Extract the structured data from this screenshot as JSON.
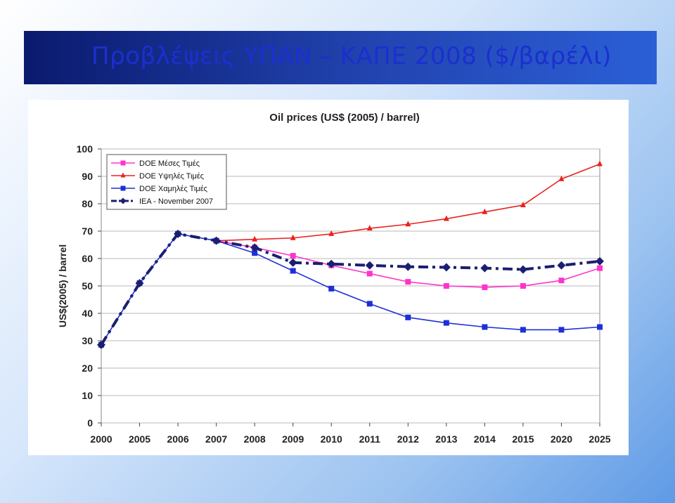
{
  "slide": {
    "title": "Προβλέψεις ΥΠΑΝ – ΚΑΠΕ 2008 ($/βαρέλι)"
  },
  "chart_data": {
    "type": "line",
    "title": "Oil prices (US$ (2005) / barrel)",
    "xlabel": "",
    "ylabel": "US$(2005) / barrel",
    "categories": [
      "2000",
      "2005",
      "2006",
      "2007",
      "2008",
      "2009",
      "2010",
      "2011",
      "2012",
      "2013",
      "2014",
      "2015",
      "2020",
      "2025"
    ],
    "ylim": [
      0,
      100
    ],
    "yticks": [
      0,
      10,
      20,
      30,
      40,
      50,
      60,
      70,
      80,
      90,
      100
    ],
    "grid": true,
    "legend_position": "top-left",
    "series": [
      {
        "name": "DOE Μέσες Τιμές",
        "color": "#ff33cc",
        "marker": "square",
        "dash": "solid",
        "values": [
          null,
          null,
          null,
          66.5,
          64,
          61,
          57.5,
          54.5,
          51.5,
          50,
          49.5,
          50,
          52,
          56.5
        ]
      },
      {
        "name": "DOE Υψηλές Τιμές",
        "color": "#e8231f",
        "marker": "triangle",
        "dash": "solid",
        "values": [
          null,
          null,
          null,
          66.5,
          67,
          67.5,
          69,
          71,
          72.5,
          74.5,
          77,
          79.5,
          89,
          94.5
        ]
      },
      {
        "name": "DOE Χαμηλές Τιμές",
        "color": "#1f2fd6",
        "marker": "square",
        "dash": "solid",
        "values": [
          28.5,
          51,
          69,
          66.5,
          62,
          55.5,
          49,
          43.5,
          38.5,
          36.5,
          35,
          34,
          34,
          35
        ]
      },
      {
        "name": "IEA - November 2007",
        "color": "#1a1f70",
        "marker": "diamond",
        "dash": "dashdot",
        "values": [
          28.5,
          51,
          69,
          66.5,
          64,
          58.5,
          58,
          57.5,
          57,
          56.8,
          56.5,
          56,
          57.5,
          59
        ]
      }
    ]
  }
}
